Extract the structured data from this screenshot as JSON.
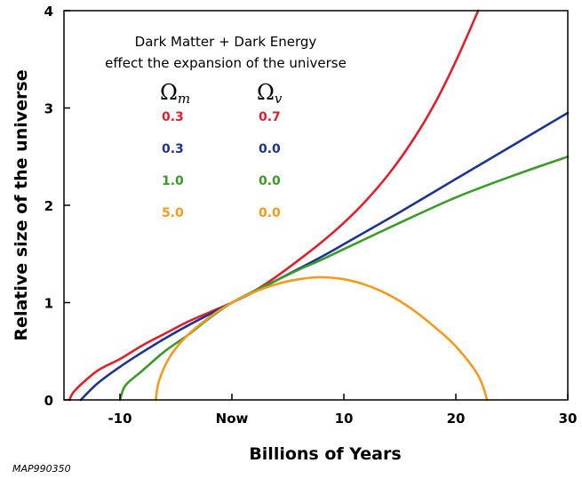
{
  "chart_data": {
    "type": "line",
    "xlabel": "Billions of Years",
    "ylabel": "Relative size of the universe",
    "xlim": [
      -15,
      30
    ],
    "ylim": [
      0,
      4
    ],
    "x_ticks": [
      {
        "value": -10,
        "label": "-10"
      },
      {
        "value": 0,
        "label": "Now"
      },
      {
        "value": 10,
        "label": "10"
      },
      {
        "value": 20,
        "label": "20"
      },
      {
        "value": 30,
        "label": "30"
      }
    ],
    "y_ticks": [
      {
        "value": 0,
        "label": "0"
      },
      {
        "value": 1,
        "label": "1"
      },
      {
        "value": 2,
        "label": "2"
      },
      {
        "value": 3,
        "label": "3"
      },
      {
        "value": 4,
        "label": "4"
      }
    ],
    "grid": false,
    "annotation_line1": "Dark Matter + Dark Energy",
    "annotation_line2": "effect the expansion of the universe",
    "legend": {
      "placement": "top-left",
      "header_m_symbol": "Ω",
      "header_m_sub": "m",
      "header_v_symbol": "Ω",
      "header_v_sub": "v"
    },
    "series": [
      {
        "omega_m": "0.3",
        "omega_v": "0.7",
        "color": "#e0202c",
        "points": [
          [
            -14.5,
            0
          ],
          [
            -14,
            0.1
          ],
          [
            -12,
            0.3
          ],
          [
            -10,
            0.42
          ],
          [
            -8,
            0.56
          ],
          [
            -6,
            0.68
          ],
          [
            -4,
            0.8
          ],
          [
            -2,
            0.9
          ],
          [
            0,
            1.0
          ],
          [
            2,
            1.12
          ],
          [
            4,
            1.27
          ],
          [
            6,
            1.44
          ],
          [
            8,
            1.62
          ],
          [
            10,
            1.82
          ],
          [
            12,
            2.05
          ],
          [
            14,
            2.32
          ],
          [
            16,
            2.64
          ],
          [
            18,
            3.02
          ],
          [
            20,
            3.48
          ],
          [
            22,
            4.0
          ]
        ]
      },
      {
        "omega_m": "0.3",
        "omega_v": "0.0",
        "color": "#1c3592",
        "points": [
          [
            -13.5,
            0
          ],
          [
            -12,
            0.17
          ],
          [
            -10,
            0.34
          ],
          [
            -8,
            0.49
          ],
          [
            -6,
            0.63
          ],
          [
            -4,
            0.76
          ],
          [
            -2,
            0.88
          ],
          [
            0,
            1.0
          ],
          [
            2,
            1.11
          ],
          [
            4,
            1.23
          ],
          [
            6,
            1.35
          ],
          [
            8,
            1.47
          ],
          [
            10,
            1.6
          ],
          [
            15,
            1.93
          ],
          [
            20,
            2.27
          ],
          [
            25,
            2.61
          ],
          [
            30,
            2.95
          ]
        ]
      },
      {
        "omega_m": "1.0",
        "omega_v": "0.0",
        "color": "#3a9b28",
        "points": [
          [
            -10,
            0
          ],
          [
            -9.5,
            0.15
          ],
          [
            -8,
            0.3
          ],
          [
            -6,
            0.5
          ],
          [
            -4,
            0.66
          ],
          [
            -2,
            0.84
          ],
          [
            0,
            1.0
          ],
          [
            2,
            1.12
          ],
          [
            4,
            1.23
          ],
          [
            6,
            1.34
          ],
          [
            8,
            1.44
          ],
          [
            10,
            1.55
          ],
          [
            15,
            1.82
          ],
          [
            20,
            2.08
          ],
          [
            25,
            2.3
          ],
          [
            30,
            2.5
          ]
        ]
      },
      {
        "omega_m": "5.0",
        "omega_v": "0.0",
        "color": "#f39a1f",
        "points": [
          [
            -6.8,
            0
          ],
          [
            -6.5,
            0.2
          ],
          [
            -5.5,
            0.45
          ],
          [
            -4,
            0.66
          ],
          [
            -2,
            0.85
          ],
          [
            0,
            1.0
          ],
          [
            2,
            1.11
          ],
          [
            4,
            1.19
          ],
          [
            6,
            1.24
          ],
          [
            8,
            1.26
          ],
          [
            10,
            1.24
          ],
          [
            12,
            1.18
          ],
          [
            14,
            1.08
          ],
          [
            16,
            0.94
          ],
          [
            18,
            0.76
          ],
          [
            20,
            0.55
          ],
          [
            22,
            0.25
          ],
          [
            22.8,
            0
          ]
        ]
      }
    ]
  },
  "footer": {
    "source_id": "MAP990350"
  }
}
